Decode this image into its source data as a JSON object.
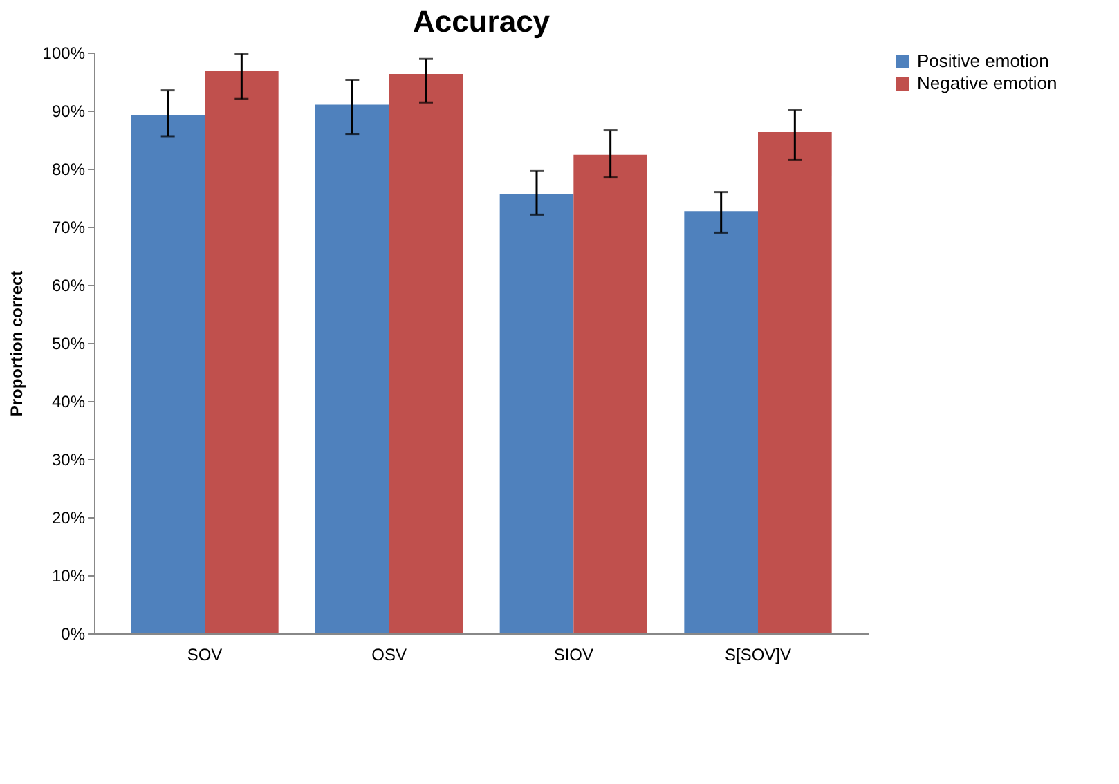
{
  "chart_data": {
    "type": "bar",
    "title": "Accuracy",
    "ylabel": "Proportion correct",
    "categories": [
      "SOV",
      "OSV",
      "SIOV",
      "S[SOV]V"
    ],
    "series": [
      {
        "name": "Positive emotion",
        "color": "#4f81bd",
        "values": [
          89.2,
          91.0,
          75.7,
          72.7
        ],
        "errors": [
          [
            85.6,
            93.5
          ],
          [
            86.0,
            95.3
          ],
          [
            72.1,
            79.6
          ],
          [
            69.0,
            76.0
          ]
        ]
      },
      {
        "name": "Negative emotion",
        "color": "#c0504d",
        "values": [
          96.9,
          96.3,
          82.4,
          86.3
        ],
        "errors": [
          [
            92.0,
            99.8
          ],
          [
            91.4,
            98.9
          ],
          [
            78.5,
            86.6
          ],
          [
            81.5,
            90.1
          ]
        ]
      }
    ],
    "ylim": [
      0,
      100
    ],
    "yticks": [
      {
        "value": 0,
        "label": "0%"
      },
      {
        "value": 10,
        "label": "10%"
      },
      {
        "value": 20,
        "label": "20%"
      },
      {
        "value": 30,
        "label": "30%"
      },
      {
        "value": 40,
        "label": "40%"
      },
      {
        "value": 50,
        "label": "50%"
      },
      {
        "value": 60,
        "label": "60%"
      },
      {
        "value": 70,
        "label": "70%"
      },
      {
        "value": 80,
        "label": "80%"
      },
      {
        "value": 90,
        "label": "90%"
      },
      {
        "value": 100,
        "label": "100%"
      }
    ],
    "grid": false,
    "legend": "right"
  }
}
